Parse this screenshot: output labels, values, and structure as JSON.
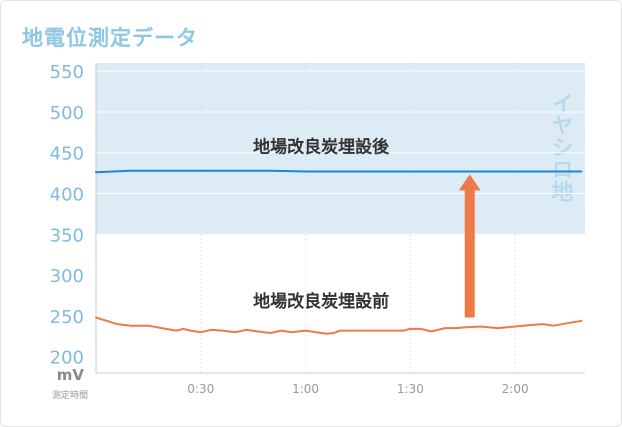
{
  "title": "地電位測定データ",
  "chart_data": {
    "type": "line",
    "title": "地電位測定データ",
    "ylabel": "mV",
    "xlabel": "測定時間",
    "ylim": [
      180,
      560
    ],
    "xlim": [
      0,
      140
    ],
    "yticks": [
      {
        "value": 200,
        "label": "200"
      },
      {
        "value": 250,
        "label": "250"
      },
      {
        "value": 300,
        "label": "300"
      },
      {
        "value": 350,
        "label": "350"
      },
      {
        "value": 400,
        "label": "400"
      },
      {
        "value": 450,
        "label": "450"
      },
      {
        "value": 500,
        "label": "500"
      },
      {
        "value": 550,
        "label": "550"
      }
    ],
    "xticks": [
      {
        "value": 30,
        "label": "0:30"
      },
      {
        "value": 60,
        "label": "1:00"
      },
      {
        "value": 90,
        "label": "1:30"
      },
      {
        "value": 120,
        "label": "2:00"
      }
    ],
    "band": {
      "from": 350,
      "to": 560,
      "label": "イヤシロ地",
      "color": "#dcebf4"
    },
    "series": [
      {
        "name": "地場改良炭埋設後",
        "color": "#1a86d8",
        "x": [
          0,
          5,
          10,
          20,
          30,
          40,
          50,
          60,
          70,
          80,
          90,
          100,
          110,
          120,
          130,
          139
        ],
        "y": [
          426,
          427,
          428,
          428,
          428,
          428,
          428,
          427,
          427,
          427,
          427,
          427,
          427,
          427,
          427,
          427
        ]
      },
      {
        "name": "地場改良炭埋設前",
        "color": "#ee7a47",
        "x": [
          0,
          3,
          6,
          10,
          15,
          20,
          23,
          25,
          27,
          30,
          33,
          36,
          40,
          43,
          46,
          50,
          53,
          56,
          60,
          63,
          66,
          68,
          70,
          75,
          80,
          85,
          88,
          90,
          93,
          96,
          100,
          103,
          106,
          110,
          115,
          120,
          125,
          128,
          131,
          135,
          139
        ],
        "y": [
          248,
          244,
          240,
          238,
          238,
          234,
          232,
          234,
          232,
          230,
          233,
          232,
          230,
          233,
          231,
          229,
          232,
          230,
          232,
          230,
          228,
          229,
          232,
          232,
          232,
          232,
          232,
          234,
          234,
          231,
          235,
          235,
          236,
          237,
          235,
          237,
          239,
          240,
          238,
          241,
          244
        ]
      }
    ],
    "annotations": [
      {
        "text": "地場改良炭埋設後",
        "x": 45,
        "y": 450
      },
      {
        "text": "地場改良炭埋設前",
        "x": 45,
        "y": 261
      },
      {
        "type": "arrow",
        "x": 107,
        "y_from": 248,
        "y_to": 426,
        "color": "#ee7a47"
      }
    ],
    "grid": true
  }
}
